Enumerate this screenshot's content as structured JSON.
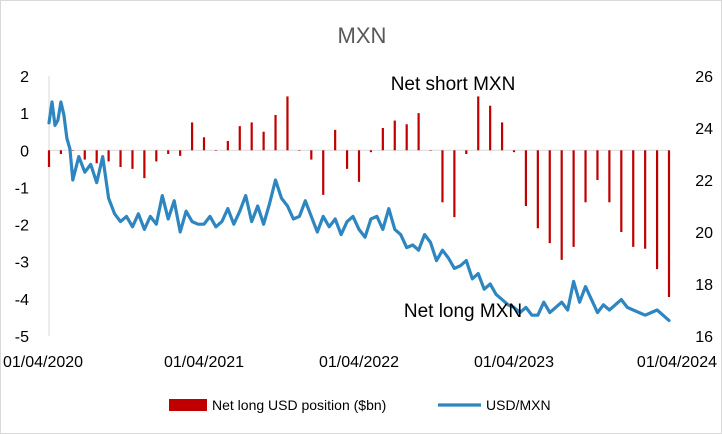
{
  "chart_data": {
    "type": "bar+line",
    "title": "MXN",
    "x_tick_labels": [
      "01/04/2020",
      "01/04/2021",
      "01/04/2022",
      "01/04/2023",
      "01/04/2024"
    ],
    "y_left": {
      "ticks": [
        "2",
        "1",
        "0",
        "-1",
        "-2",
        "-3",
        "-4",
        "-5"
      ],
      "range": [
        -5,
        2
      ]
    },
    "y_right": {
      "ticks": [
        "26",
        "24",
        "22",
        "20",
        "18",
        "16"
      ],
      "range": [
        16,
        26
      ]
    },
    "grid": false,
    "legend_position": "bottom",
    "annotations": {
      "short": "Net short MXN",
      "long": "Net long MXN"
    },
    "colors": {
      "bar": "#c00000",
      "line": "#2e86c1",
      "axis": "#d9d9d9",
      "title": "#595959"
    },
    "series": [
      {
        "name": "Net long USD position ($bn)",
        "kind": "bar",
        "axis": "left",
        "x": [
          0,
          4,
          8,
          12,
          16,
          20,
          24,
          28,
          32,
          36,
          40,
          44,
          48,
          52,
          56,
          60,
          64,
          68,
          72,
          76,
          80,
          84,
          88,
          92,
          96,
          100,
          104,
          108,
          112,
          116,
          120,
          124,
          128,
          132,
          136,
          140,
          144,
          148,
          152,
          156,
          160,
          164,
          168,
          172,
          176,
          180,
          184,
          188,
          192,
          196,
          200,
          204,
          208
        ],
        "values": [
          -0.45,
          -0.1,
          0.0,
          -0.25,
          -0.35,
          -0.3,
          -0.45,
          -0.5,
          -0.75,
          -0.3,
          -0.1,
          -0.15,
          0.75,
          0.35,
          0.0,
          0.25,
          0.65,
          0.75,
          0.5,
          0.95,
          1.45,
          0.0,
          -0.25,
          -1.2,
          0.55,
          -0.5,
          -0.85,
          -0.05,
          0.6,
          0.8,
          0.7,
          1.0,
          0.0,
          -1.4,
          -1.8,
          -0.1,
          1.45,
          1.2,
          0.75,
          -0.05,
          -1.5,
          -2.1,
          -2.5,
          -2.95,
          -2.6,
          -1.4,
          -0.8,
          -1.4,
          -2.2,
          -2.6,
          -2.65,
          -3.2,
          -3.95
        ]
      },
      {
        "name": "USD/MXN",
        "kind": "line",
        "axis": "right",
        "x": [
          0,
          1,
          2,
          3,
          4,
          5,
          6,
          7,
          8,
          10,
          12,
          14,
          16,
          18,
          20,
          22,
          24,
          26,
          28,
          30,
          32,
          34,
          36,
          38,
          40,
          42,
          44,
          46,
          48,
          50,
          52,
          54,
          56,
          58,
          60,
          62,
          64,
          66,
          68,
          70,
          72,
          74,
          76,
          78,
          80,
          82,
          84,
          86,
          88,
          90,
          92,
          94,
          96,
          98,
          100,
          102,
          104,
          106,
          108,
          110,
          112,
          114,
          116,
          118,
          120,
          122,
          124,
          126,
          128,
          130,
          132,
          134,
          136,
          138,
          140,
          142,
          144,
          146,
          148,
          150,
          152,
          154,
          156,
          158,
          160,
          162,
          164,
          166,
          168,
          170,
          172,
          174,
          176,
          178,
          180,
          182,
          184,
          186,
          188,
          190,
          192,
          194,
          196,
          198,
          200,
          202,
          204,
          206,
          208
        ],
        "values": [
          24.2,
          25.0,
          24.1,
          24.3,
          25.0,
          24.5,
          23.6,
          23.2,
          22.0,
          22.9,
          22.3,
          22.6,
          21.9,
          22.9,
          21.3,
          20.7,
          20.4,
          20.6,
          20.2,
          20.7,
          20.1,
          20.6,
          20.3,
          21.4,
          20.5,
          21.2,
          20.0,
          20.8,
          20.4,
          20.3,
          20.3,
          20.6,
          20.2,
          20.4,
          20.9,
          20.3,
          20.8,
          21.4,
          20.4,
          21.0,
          20.3,
          21.1,
          22.0,
          21.3,
          21.0,
          20.5,
          20.6,
          21.2,
          20.6,
          20.0,
          20.6,
          20.2,
          20.5,
          19.9,
          20.4,
          20.6,
          20.1,
          19.8,
          20.5,
          20.6,
          20.1,
          20.9,
          20.1,
          19.9,
          19.4,
          19.5,
          19.3,
          19.9,
          19.6,
          18.9,
          19.3,
          19.0,
          18.6,
          18.7,
          18.9,
          18.2,
          18.4,
          17.8,
          18.0,
          17.6,
          17.4,
          17.2,
          17.1,
          16.9,
          17.1,
          16.8,
          16.8,
          17.3,
          16.9,
          17.1,
          17.3,
          17.0,
          18.1,
          17.3,
          17.9,
          17.4,
          16.9,
          17.2,
          17.0,
          17.2,
          17.4,
          17.1,
          17.0,
          16.9,
          16.8,
          16.9,
          17.0,
          16.8,
          16.6
        ]
      }
    ]
  }
}
